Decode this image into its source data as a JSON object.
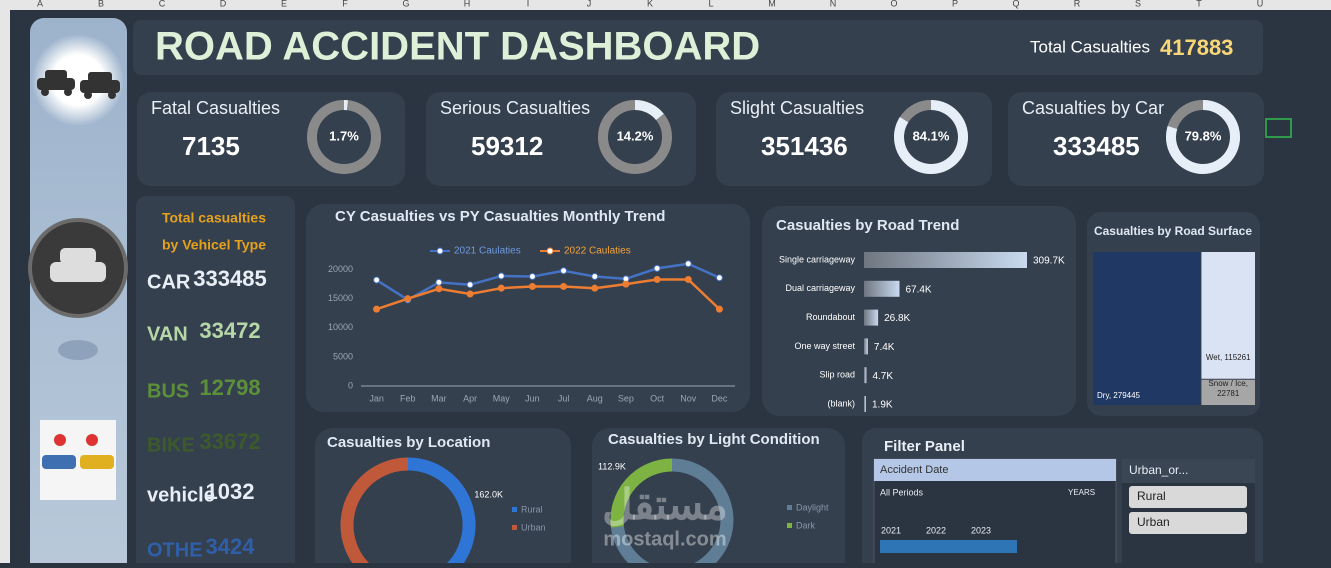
{
  "spreadsheet": {
    "columns": [
      "A",
      "B",
      "C",
      "D",
      "E",
      "F",
      "G",
      "H",
      "I",
      "J",
      "K",
      "L",
      "M",
      "N",
      "O",
      "P",
      "Q",
      "R",
      "S",
      "T",
      "U"
    ]
  },
  "header": {
    "title": "ROAD ACCIDENT DASHBOARD",
    "total_label": "Total Casualties",
    "total": 417883
  },
  "kpis": [
    {
      "name": "Fatal Casualties",
      "value": 7135,
      "percent": 1.7,
      "percent_label": "1.7%"
    },
    {
      "name": "Serious Casualties",
      "value": 59312,
      "percent": 14.2,
      "percent_label": "14.2%"
    },
    {
      "name": "Slight Casualties",
      "value": 351436,
      "percent": 84.1,
      "percent_label": "84.1%"
    },
    {
      "name": "Casualties by Car",
      "value": 333485,
      "percent": 79.8,
      "percent_label": "79.8%"
    }
  ],
  "vehicle_types": {
    "title": [
      "Total casualties",
      "by Vehicel Type"
    ],
    "items": [
      {
        "name": "CAR",
        "value": 333485,
        "color": "#e8eef5"
      },
      {
        "name": "VAN",
        "value": 33472,
        "color": "#b6d7a8"
      },
      {
        "name": "BUS",
        "value": 12798,
        "color": "#5c8f3a"
      },
      {
        "name": "BIKE",
        "value": 33672,
        "color": "#3d5a2c"
      },
      {
        "name": "vehicle",
        "value": 1032,
        "color": "#e8eef5"
      },
      {
        "name": "OTHE",
        "value": 3424,
        "color": "#2f5fa8"
      }
    ]
  },
  "chart_data": [
    {
      "type": "line",
      "title": "CY Casualties vs PY Casualties Monthly Trend",
      "categories": [
        "Jan",
        "Feb",
        "Mar",
        "Apr",
        "May",
        "Jun",
        "Jul",
        "Aug",
        "Sep",
        "Oct",
        "Nov",
        "Dec"
      ],
      "series": [
        {
          "name": "2021 Caulaties",
          "color": "#4472c4",
          "values": [
            18200,
            14800,
            17800,
            17400,
            18900,
            18800,
            19800,
            18800,
            18400,
            20200,
            21000,
            18600
          ]
        },
        {
          "name": "2022 Caulaties",
          "color": "#ed7d31",
          "values": [
            13200,
            15000,
            16700,
            15800,
            16800,
            17100,
            17100,
            16800,
            17500,
            18300,
            18300,
            13200
          ]
        }
      ],
      "ylim": [
        0,
        22500
      ],
      "yticks": [
        0,
        5000,
        10000,
        15000,
        20000
      ],
      "legend": "top"
    },
    {
      "type": "hbar",
      "title": "Casualties by Road Trend",
      "categories": [
        "Single carriageway",
        "Dual carriageway",
        "Roundabout",
        "One way street",
        "Slip road",
        "(blank)"
      ],
      "values": [
        309700,
        67400,
        26800,
        7400,
        4700,
        1900
      ],
      "value_labels": [
        "309.7K",
        "67.4K",
        "26.8K",
        "7.4K",
        "4.7K",
        "1.9K"
      ]
    },
    {
      "type": "treemap",
      "title": "Casualties by Road Surface",
      "categories": [
        "Dry",
        "Wet",
        "Snow / Ice"
      ],
      "values": [
        279445,
        115261,
        22781
      ],
      "value_labels": [
        "Dry, 279445",
        "Wet, 115261",
        "Snow / Ice, 22781"
      ],
      "colors": [
        "#1f3864",
        "#dae3f3",
        "#a6a6a6"
      ]
    },
    {
      "type": "donut",
      "title": "Casualties by Location",
      "categories": [
        "Rural",
        "Urban"
      ],
      "values": [
        162000,
        255883
      ],
      "value_labels": [
        "162.0K",
        null
      ],
      "colors": [
        "#2e75d6",
        "#c0583a"
      ]
    },
    {
      "type": "donut",
      "title": "Casualties by Light Condition",
      "categories": [
        "Daylight",
        "Dark"
      ],
      "values": [
        304983,
        112900
      ],
      "value_labels": [
        null,
        "112.9K"
      ],
      "colors": [
        "#5f7d95",
        "#7cb342"
      ]
    }
  ],
  "filter_panel": {
    "title": "Filter Panel",
    "date_slicer": {
      "title": "Accident Date",
      "period": "All Periods",
      "unit": "YEARS",
      "years": [
        "2021",
        "2022",
        "2023"
      ]
    },
    "area_slicer": {
      "title": "Urban_or...",
      "items": [
        "Rural",
        "Urban"
      ]
    }
  },
  "watermark": {
    "arabic": "مستقل",
    "latin": "mostaql.com"
  }
}
